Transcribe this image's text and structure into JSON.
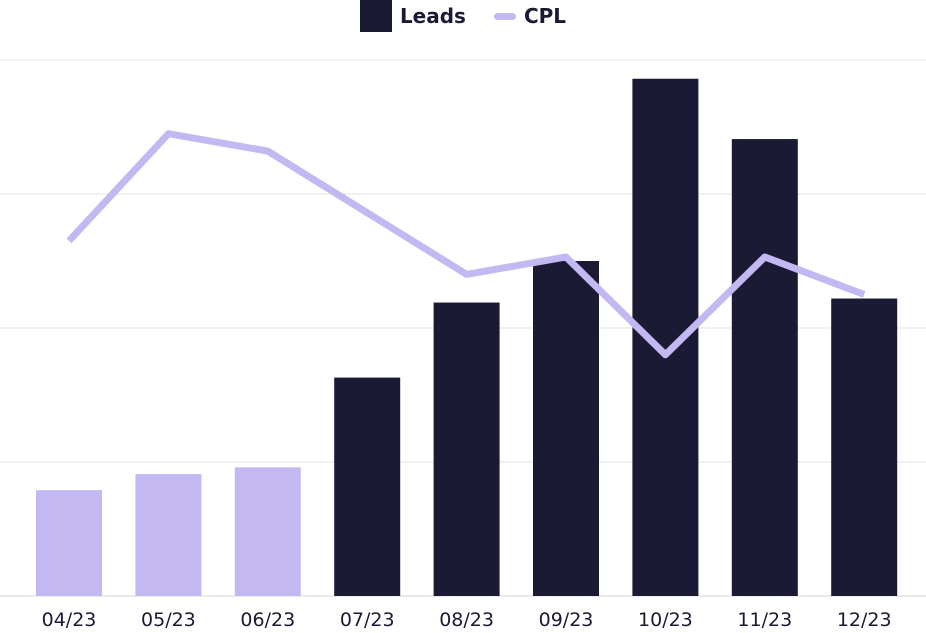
{
  "chart_data": {
    "type": "bar",
    "categories": [
      "04/23",
      "05/23",
      "06/23",
      "07/23",
      "08/23",
      "09/23",
      "10/23",
      "11/23",
      "12/23"
    ],
    "series": [
      {
        "name": "Leads",
        "type": "bar",
        "axis": "left",
        "values": [
          79,
          91,
          96,
          163,
          219,
          250,
          386,
          341,
          222
        ],
        "bar_colors": [
          "#c4b8f2",
          "#c4b8f2",
          "#c4b8f2",
          "#1b1a35",
          "#1b1a35",
          "#1b1a35",
          "#1b1a35",
          "#1b1a35",
          "#1b1a35"
        ]
      },
      {
        "name": "CPL",
        "type": "line",
        "axis": "right",
        "values": [
          26.5,
          34.5,
          33.2,
          28.6,
          24.0,
          25.3,
          18.0,
          25.3,
          22.5
        ]
      }
    ],
    "ylim_left": [
      0,
      400
    ],
    "ylim_right": [
      0,
      40
    ],
    "gridlines": [
      0,
      100,
      200,
      300,
      400
    ],
    "grid": true,
    "legend": "top-center",
    "colors": {
      "leads": "#1b1a35",
      "leads_highlight": "#c4b8f2",
      "cpl": "#c4b8f2",
      "grid": "#e3e3e3",
      "tick_text": "#1b1a35"
    }
  }
}
